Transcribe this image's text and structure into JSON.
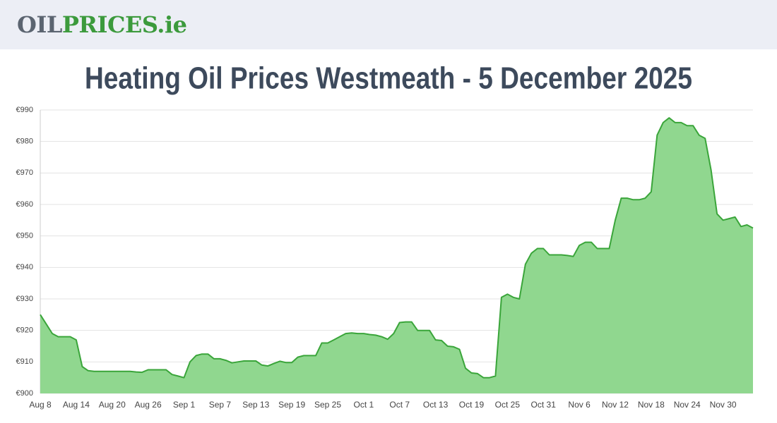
{
  "logo": [
    "OIL",
    "PRICES.ie"
  ],
  "chart_data": {
    "type": "area",
    "title": "Heating Oil Prices Westmeath - 5 December 2025",
    "categories": [
      "Aug 8",
      null,
      null,
      null,
      null,
      null,
      "Aug 14",
      null,
      null,
      null,
      null,
      null,
      "Aug 20",
      null,
      null,
      null,
      null,
      null,
      "Aug 26",
      null,
      null,
      null,
      null,
      null,
      "Sep 1",
      null,
      null,
      null,
      null,
      null,
      "Sep 7",
      null,
      null,
      null,
      null,
      null,
      "Sep 13",
      null,
      null,
      null,
      null,
      null,
      "Sep 19",
      null,
      null,
      null,
      null,
      null,
      "Sep 25",
      null,
      null,
      null,
      null,
      null,
      "Oct 1",
      null,
      null,
      null,
      null,
      null,
      "Oct 7",
      null,
      null,
      null,
      null,
      null,
      "Oct 13",
      null,
      null,
      null,
      null,
      null,
      "Oct 19",
      null,
      null,
      null,
      null,
      null,
      "Oct 25",
      null,
      null,
      null,
      null,
      null,
      "Oct 31",
      null,
      null,
      null,
      null,
      null,
      "Nov 6",
      null,
      null,
      null,
      null,
      null,
      "Nov 12",
      null,
      null,
      null,
      null,
      null,
      "Nov 18",
      null,
      null,
      null,
      null,
      null,
      "Nov 24",
      null,
      null,
      null,
      null,
      null,
      "Nov 30",
      null,
      null,
      null,
      null,
      null
    ],
    "values": [
      925,
      922,
      919,
      918,
      918,
      918,
      917,
      908.5,
      907.2,
      907,
      907,
      907,
      907,
      907,
      907,
      907,
      906.8,
      906.7,
      907.5,
      907.5,
      907.5,
      907.5,
      906,
      905.5,
      905,
      910,
      912,
      912.5,
      912.5,
      911,
      911,
      910.5,
      909.7,
      910,
      910.3,
      910.3,
      910.3,
      909,
      908.7,
      909.5,
      910.2,
      909.8,
      909.8,
      911.5,
      912,
      912,
      912,
      916,
      916,
      917,
      918,
      919,
      919.2,
      919,
      919,
      918.7,
      918.5,
      918,
      917.2,
      919,
      922.5,
      922.7,
      922.7,
      920,
      920,
      920,
      917,
      916.8,
      915,
      914.8,
      914,
      908,
      906.5,
      906.3,
      905,
      905,
      905.5,
      930.5,
      931.5,
      930.5,
      930,
      941,
      944.5,
      946,
      946,
      944,
      944,
      944,
      943.8,
      943.5,
      947,
      948,
      948,
      946,
      946,
      946,
      955,
      962,
      962,
      961.5,
      961.5,
      962,
      964,
      982,
      986,
      987.5,
      986,
      986,
      985,
      985,
      982,
      981,
      971,
      957,
      955,
      955.5,
      956,
      953,
      953.5,
      952.5
    ],
    "color": "#3aa53a",
    "fill": "#90d78f",
    "ylim": [
      900,
      990
    ],
    "yticks": [
      {
        "value": 900,
        "label": "€900"
      },
      {
        "value": 910,
        "label": "€910"
      },
      {
        "value": 920,
        "label": "€920"
      },
      {
        "value": 930,
        "label": "€930"
      },
      {
        "value": 940,
        "label": "€940"
      },
      {
        "value": 950,
        "label": "€950"
      },
      {
        "value": 960,
        "label": "€960"
      },
      {
        "value": 970,
        "label": "€970"
      },
      {
        "value": 980,
        "label": "€980"
      },
      {
        "value": 990,
        "label": "€990"
      }
    ],
    "grid": true
  }
}
